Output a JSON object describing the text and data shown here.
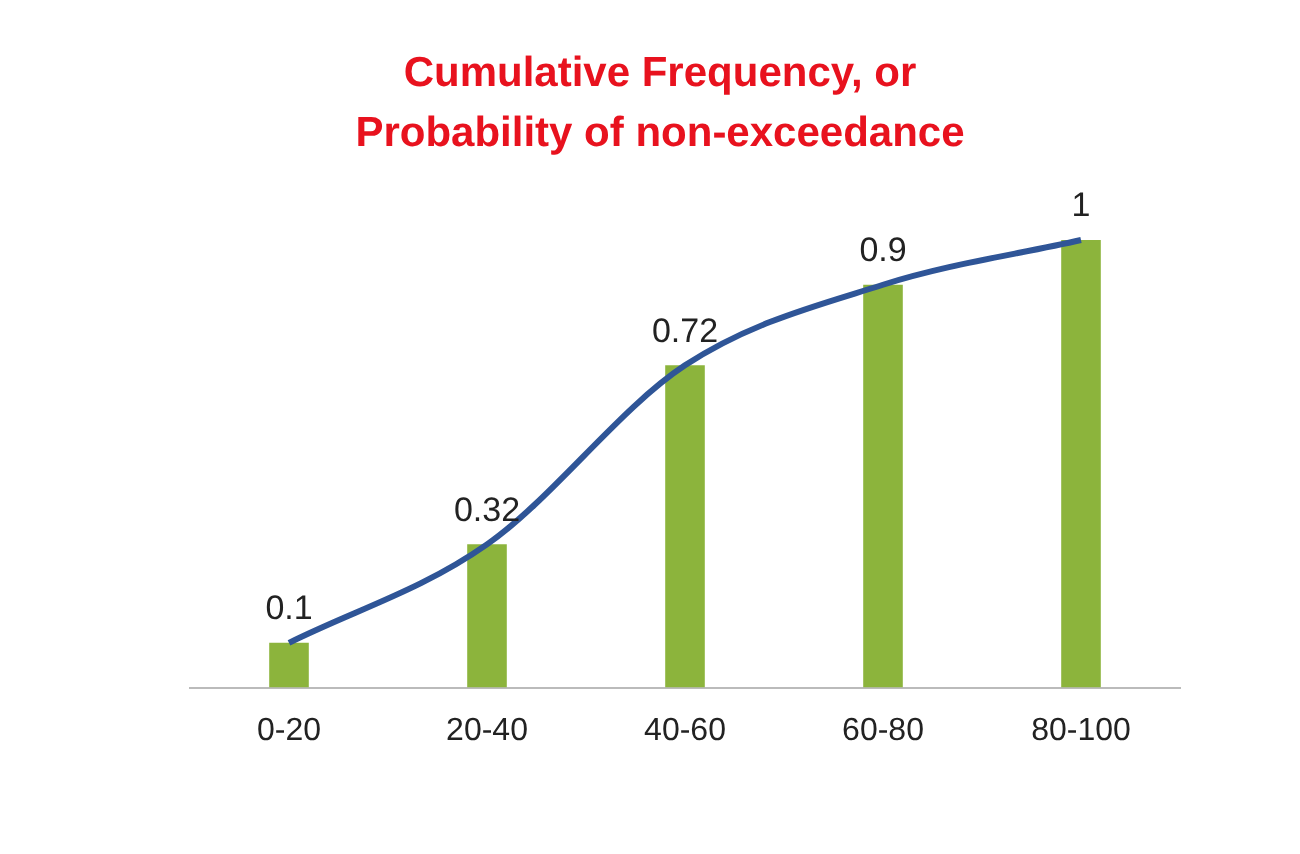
{
  "chart_data": {
    "type": "bar",
    "title": "Cumulative Frequency, or Probability of non-exceedance",
    "categories": [
      "0-20",
      "20-40",
      "40-60",
      "60-80",
      "80-100"
    ],
    "series": [
      {
        "color": "#8cb43c",
        "values": [
          0.1,
          0.32,
          0.72,
          0.9,
          1
        ],
        "value_labels": [
          "0.1",
          "0.32",
          "0.72",
          "0.9",
          "1"
        ]
      },
      {
        "type": "line",
        "color": "#2f5597",
        "values": [
          0.1,
          0.32,
          0.72,
          0.9,
          1
        ]
      }
    ],
    "grid": false,
    "legend": false
  }
}
